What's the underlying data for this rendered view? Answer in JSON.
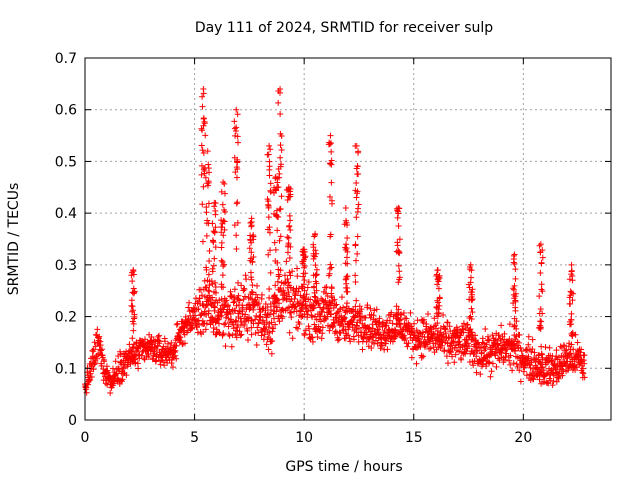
{
  "chart_data": {
    "type": "scatter",
    "title": "Day 111 of 2024, SRMTID for receiver sulp",
    "xlabel": "GPS time / hours",
    "ylabel": "SRMTID / TECUs",
    "xlim": [
      0,
      24
    ],
    "ylim": [
      0,
      0.7
    ],
    "x_ticks": [
      0,
      5,
      10,
      15,
      20
    ],
    "x_tick_labels": [
      "0",
      "5",
      "10",
      "15",
      "20"
    ],
    "y_ticks": [
      0,
      0.1,
      0.2,
      0.3,
      0.4,
      0.5,
      0.6,
      0.7
    ],
    "y_tick_labels": [
      "0",
      "0.1",
      "0.2",
      "0.3",
      "0.4",
      "0.5",
      "0.6",
      "0.7"
    ],
    "grid": true,
    "marker": "+",
    "color": "#ff0000",
    "series": [
      {
        "name": "SRMTID",
        "trend": {
          "x": [
            0,
            0.3,
            0.6,
            0.9,
            1.2,
            1.5,
            2.0,
            2.5,
            3.0,
            3.5,
            4.0,
            4.5,
            5.0,
            5.5,
            6.0,
            6.5,
            7.0,
            7.5,
            8.0,
            8.5,
            9.0,
            9.5,
            10.0,
            10.5,
            11.0,
            11.5,
            12.0,
            12.5,
            13.0,
            13.5,
            14.0,
            14.5,
            15.0,
            15.5,
            16.0,
            16.5,
            17.0,
            17.5,
            18.0,
            18.5,
            19.0,
            19.5,
            20.0,
            20.5,
            21.0,
            21.5,
            22.0,
            22.5,
            22.8
          ],
          "y": [
            0.06,
            0.1,
            0.15,
            0.1,
            0.07,
            0.1,
            0.12,
            0.13,
            0.14,
            0.13,
            0.13,
            0.18,
            0.2,
            0.22,
            0.2,
            0.21,
            0.2,
            0.22,
            0.2,
            0.19,
            0.25,
            0.22,
            0.22,
            0.2,
            0.21,
            0.2,
            0.18,
            0.2,
            0.18,
            0.17,
            0.18,
            0.18,
            0.16,
            0.16,
            0.16,
            0.15,
            0.15,
            0.15,
            0.13,
            0.13,
            0.14,
            0.14,
            0.12,
            0.11,
            0.1,
            0.1,
            0.12,
            0.12,
            0.1
          ],
          "spread": [
            0.02,
            0.03,
            0.04,
            0.03,
            0.02,
            0.03,
            0.03,
            0.03,
            0.03,
            0.03,
            0.03,
            0.03,
            0.04,
            0.06,
            0.06,
            0.06,
            0.06,
            0.06,
            0.06,
            0.06,
            0.06,
            0.06,
            0.05,
            0.05,
            0.05,
            0.05,
            0.04,
            0.05,
            0.04,
            0.04,
            0.04,
            0.04,
            0.04,
            0.04,
            0.04,
            0.04,
            0.04,
            0.04,
            0.04,
            0.04,
            0.04,
            0.04,
            0.04,
            0.04,
            0.04,
            0.04,
            0.04,
            0.04,
            0.04
          ]
        },
        "excursions": [
          {
            "x": 2.2,
            "peak": 0.29
          },
          {
            "x": 5.4,
            "peak": 0.64
          },
          {
            "x": 5.6,
            "peak": 0.52
          },
          {
            "x": 5.9,
            "peak": 0.42
          },
          {
            "x": 6.3,
            "peak": 0.46
          },
          {
            "x": 6.9,
            "peak": 0.6
          },
          {
            "x": 7.6,
            "peak": 0.39
          },
          {
            "x": 8.4,
            "peak": 0.53
          },
          {
            "x": 8.7,
            "peak": 0.47
          },
          {
            "x": 8.9,
            "peak": 0.64
          },
          {
            "x": 9.3,
            "peak": 0.45
          },
          {
            "x": 10.0,
            "peak": 0.33
          },
          {
            "x": 10.5,
            "peak": 0.36
          },
          {
            "x": 11.2,
            "peak": 0.55
          },
          {
            "x": 11.9,
            "peak": 0.41
          },
          {
            "x": 12.4,
            "peak": 0.53
          },
          {
            "x": 14.3,
            "peak": 0.41
          },
          {
            "x": 16.1,
            "peak": 0.29
          },
          {
            "x": 17.6,
            "peak": 0.3
          },
          {
            "x": 19.6,
            "peak": 0.32
          },
          {
            "x": 20.8,
            "peak": 0.34
          },
          {
            "x": 22.2,
            "peak": 0.3
          }
        ]
      }
    ]
  }
}
